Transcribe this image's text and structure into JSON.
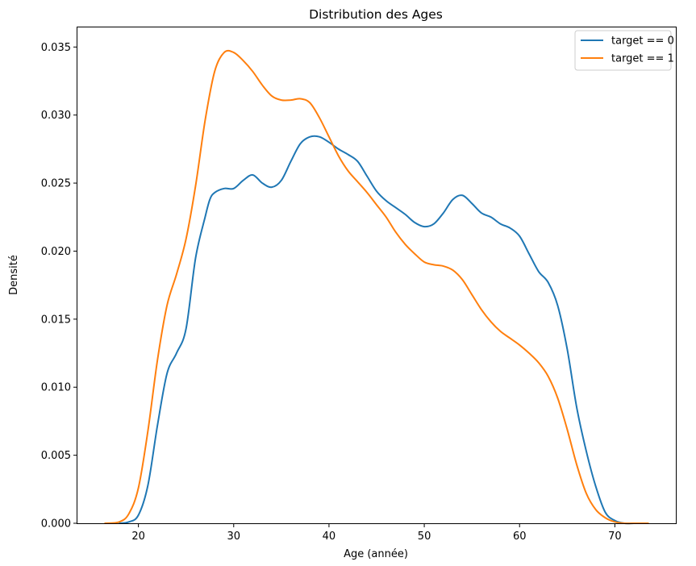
{
  "chart_data": {
    "type": "line",
    "title": "Distribution des Ages",
    "xlabel": "Age (année)",
    "ylabel": "Densité",
    "xlim": [
      13.6,
      76.4
    ],
    "ylim": [
      0,
      0.0365
    ],
    "xticks": [
      20,
      30,
      40,
      50,
      60,
      70
    ],
    "xtick_labels": [
      "20",
      "30",
      "40",
      "50",
      "60",
      "70"
    ],
    "yticks": [
      0,
      0.005,
      0.01,
      0.015,
      0.02,
      0.025,
      0.03,
      0.035
    ],
    "ytick_labels": [
      "0.000",
      "0.005",
      "0.010",
      "0.015",
      "0.020",
      "0.025",
      "0.030",
      "0.035"
    ],
    "grid": false,
    "legend_position": "top-right",
    "series": [
      {
        "name": "target == 0",
        "color": "#1f77b4",
        "x": [
          18.0,
          19.0,
          20.0,
          21.0,
          22.0,
          23.0,
          24.0,
          25.0,
          26.0,
          27.0,
          27.5,
          28.0,
          29.0,
          30.0,
          31.0,
          32.0,
          33.0,
          34.0,
          35.0,
          36.0,
          37.0,
          38.0,
          39.0,
          40.0,
          41.0,
          42.0,
          43.0,
          44.0,
          45.0,
          46.0,
          47.0,
          48.0,
          49.0,
          50.0,
          51.0,
          52.0,
          53.0,
          54.0,
          55.0,
          56.0,
          57.0,
          58.0,
          59.0,
          60.0,
          61.0,
          62.0,
          63.0,
          64.0,
          65.0,
          66.0,
          67.0,
          68.0,
          69.0,
          70.0,
          71.0,
          72.0,
          73.0
        ],
        "y": [
          0.0,
          0.0001,
          0.0006,
          0.0028,
          0.0072,
          0.011,
          0.0125,
          0.0143,
          0.0195,
          0.0225,
          0.0238,
          0.0243,
          0.0246,
          0.0246,
          0.0252,
          0.0256,
          0.025,
          0.0247,
          0.0252,
          0.0266,
          0.0279,
          0.0284,
          0.0284,
          0.028,
          0.0275,
          0.0271,
          0.0266,
          0.0255,
          0.0244,
          0.0237,
          0.0232,
          0.0227,
          0.0221,
          0.0218,
          0.022,
          0.0228,
          0.0238,
          0.0241,
          0.0235,
          0.0228,
          0.0225,
          0.022,
          0.0217,
          0.0211,
          0.0198,
          0.0185,
          0.0177,
          0.016,
          0.0128,
          0.0085,
          0.0053,
          0.0027,
          0.0008,
          0.0002,
          0.0,
          0.0,
          0.0
        ]
      },
      {
        "name": "target == 1",
        "color": "#ff7f0e",
        "x": [
          16.5,
          18.0,
          19.0,
          20.0,
          21.0,
          22.0,
          23.0,
          24.0,
          25.0,
          26.0,
          27.0,
          28.0,
          29.0,
          30.0,
          31.0,
          32.0,
          33.0,
          34.0,
          35.0,
          36.0,
          37.0,
          38.0,
          39.0,
          40.0,
          41.0,
          42.0,
          43.0,
          44.0,
          45.0,
          46.0,
          47.0,
          48.0,
          49.0,
          50.0,
          51.0,
          52.0,
          53.0,
          54.0,
          55.0,
          56.0,
          57.0,
          58.0,
          59.0,
          60.0,
          61.0,
          62.0,
          63.0,
          64.0,
          65.0,
          66.0,
          67.0,
          68.0,
          69.0,
          70.0,
          71.0,
          72.0,
          73.5
        ],
        "y": [
          0.0,
          0.0001,
          0.0007,
          0.0026,
          0.0068,
          0.012,
          0.016,
          0.0183,
          0.0209,
          0.0248,
          0.0296,
          0.0332,
          0.0346,
          0.0346,
          0.034,
          0.0332,
          0.0322,
          0.0314,
          0.0311,
          0.0311,
          0.0312,
          0.0309,
          0.0298,
          0.0284,
          0.027,
          0.0259,
          0.0251,
          0.0243,
          0.0234,
          0.0225,
          0.0214,
          0.0205,
          0.0198,
          0.0192,
          0.019,
          0.0189,
          0.0186,
          0.0179,
          0.0168,
          0.0157,
          0.0148,
          0.0141,
          0.0136,
          0.0131,
          0.0125,
          0.0118,
          0.0108,
          0.0092,
          0.0069,
          0.0043,
          0.0022,
          0.001,
          0.0004,
          0.0001,
          0.0,
          0.0,
          0.0
        ]
      }
    ]
  }
}
